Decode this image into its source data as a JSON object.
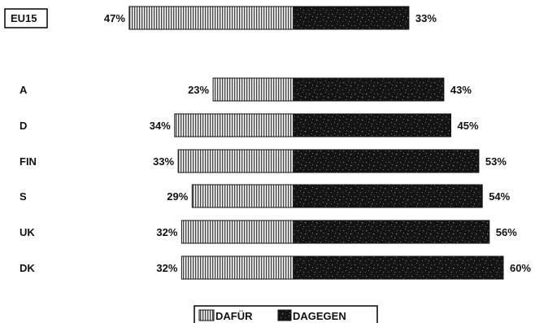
{
  "chart_data": {
    "type": "bar",
    "orientation": "horizontal-diverging",
    "categories": [
      "EU15",
      "A",
      "D",
      "FIN",
      "S",
      "UK",
      "DK"
    ],
    "highlighted_category": "EU15",
    "series": [
      {
        "name": "DAFÜR",
        "values": [
          47,
          23,
          34,
          33,
          29,
          32,
          32
        ],
        "labels": [
          "47%",
          "23%",
          "34%",
          "33%",
          "29%",
          "32%",
          "32%"
        ],
        "pattern": "vertical-hatch"
      },
      {
        "name": "DAGEGEN",
        "values": [
          33,
          43,
          45,
          53,
          54,
          56,
          60
        ],
        "labels": [
          "33%",
          "43%",
          "45%",
          "53%",
          "54%",
          "56%",
          "60%"
        ],
        "pattern": "dark-speckle"
      }
    ],
    "value_unit": "%",
    "legend_position": "bottom-center",
    "grid": false
  },
  "colors": {
    "dafur_light": "#f2f2f2",
    "dafur_dark": "#444444",
    "dagegen_base": "#141414",
    "dagegen_speckle": "#7a7a7a",
    "text": "#111111"
  }
}
